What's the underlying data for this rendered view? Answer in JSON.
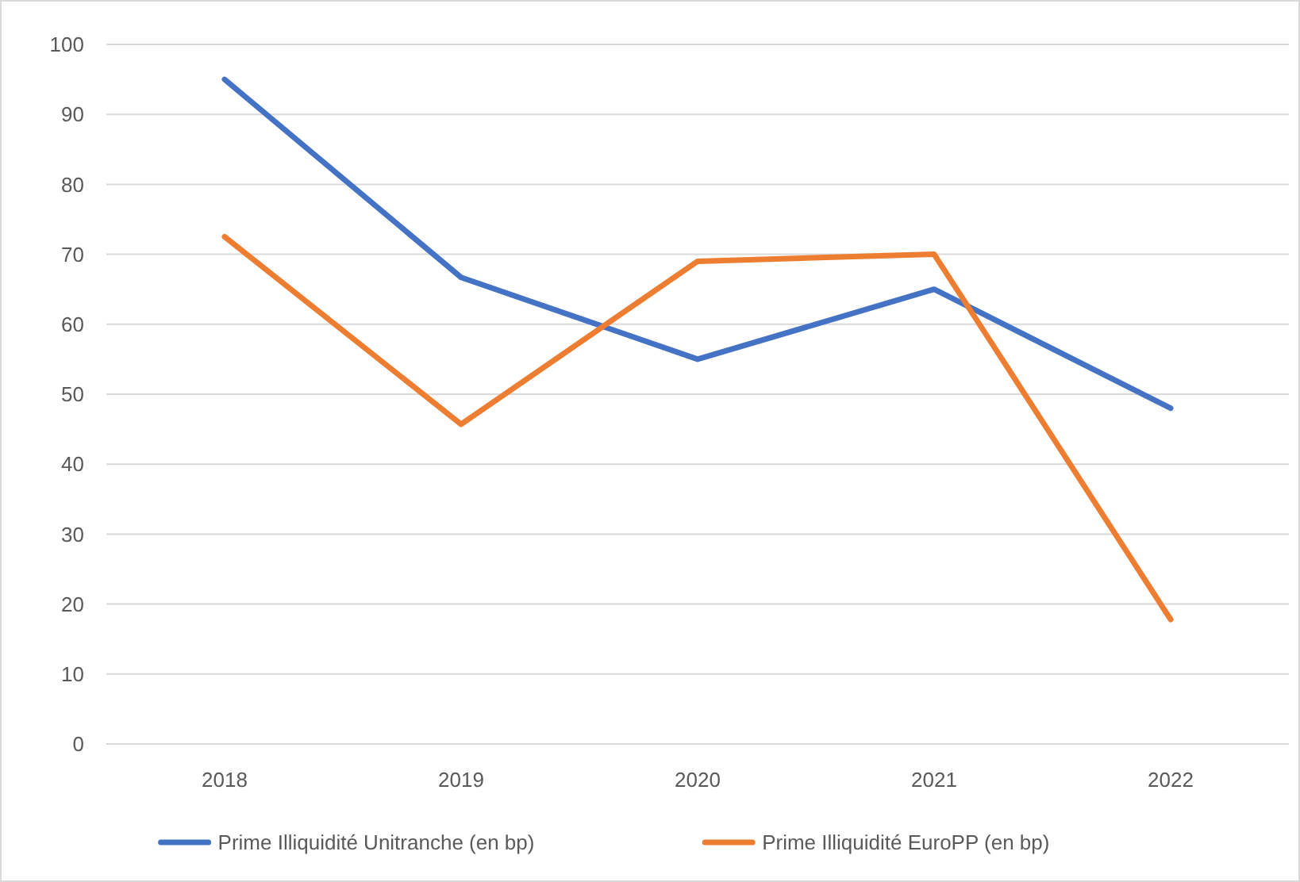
{
  "chart_data": {
    "type": "line",
    "categories": [
      "2018",
      "2019",
      "2020",
      "2021",
      "2022"
    ],
    "series": [
      {
        "name": "Prime Illiquidité Unitranche (en bp)",
        "color": "#4472c4",
        "values": [
          95,
          66.7,
          55,
          65,
          48
        ]
      },
      {
        "name": "Prime Illiquidité EuroPP (en bp)",
        "color": "#ed7d31",
        "values": [
          72.5,
          45.7,
          69,
          70,
          17.8
        ]
      }
    ],
    "ylim": [
      0,
      100
    ],
    "yticks": [
      0,
      10,
      20,
      30,
      40,
      50,
      60,
      70,
      80,
      90,
      100
    ],
    "grid": "y",
    "legend": "bottom",
    "marker": "none",
    "line_style": "solid"
  }
}
